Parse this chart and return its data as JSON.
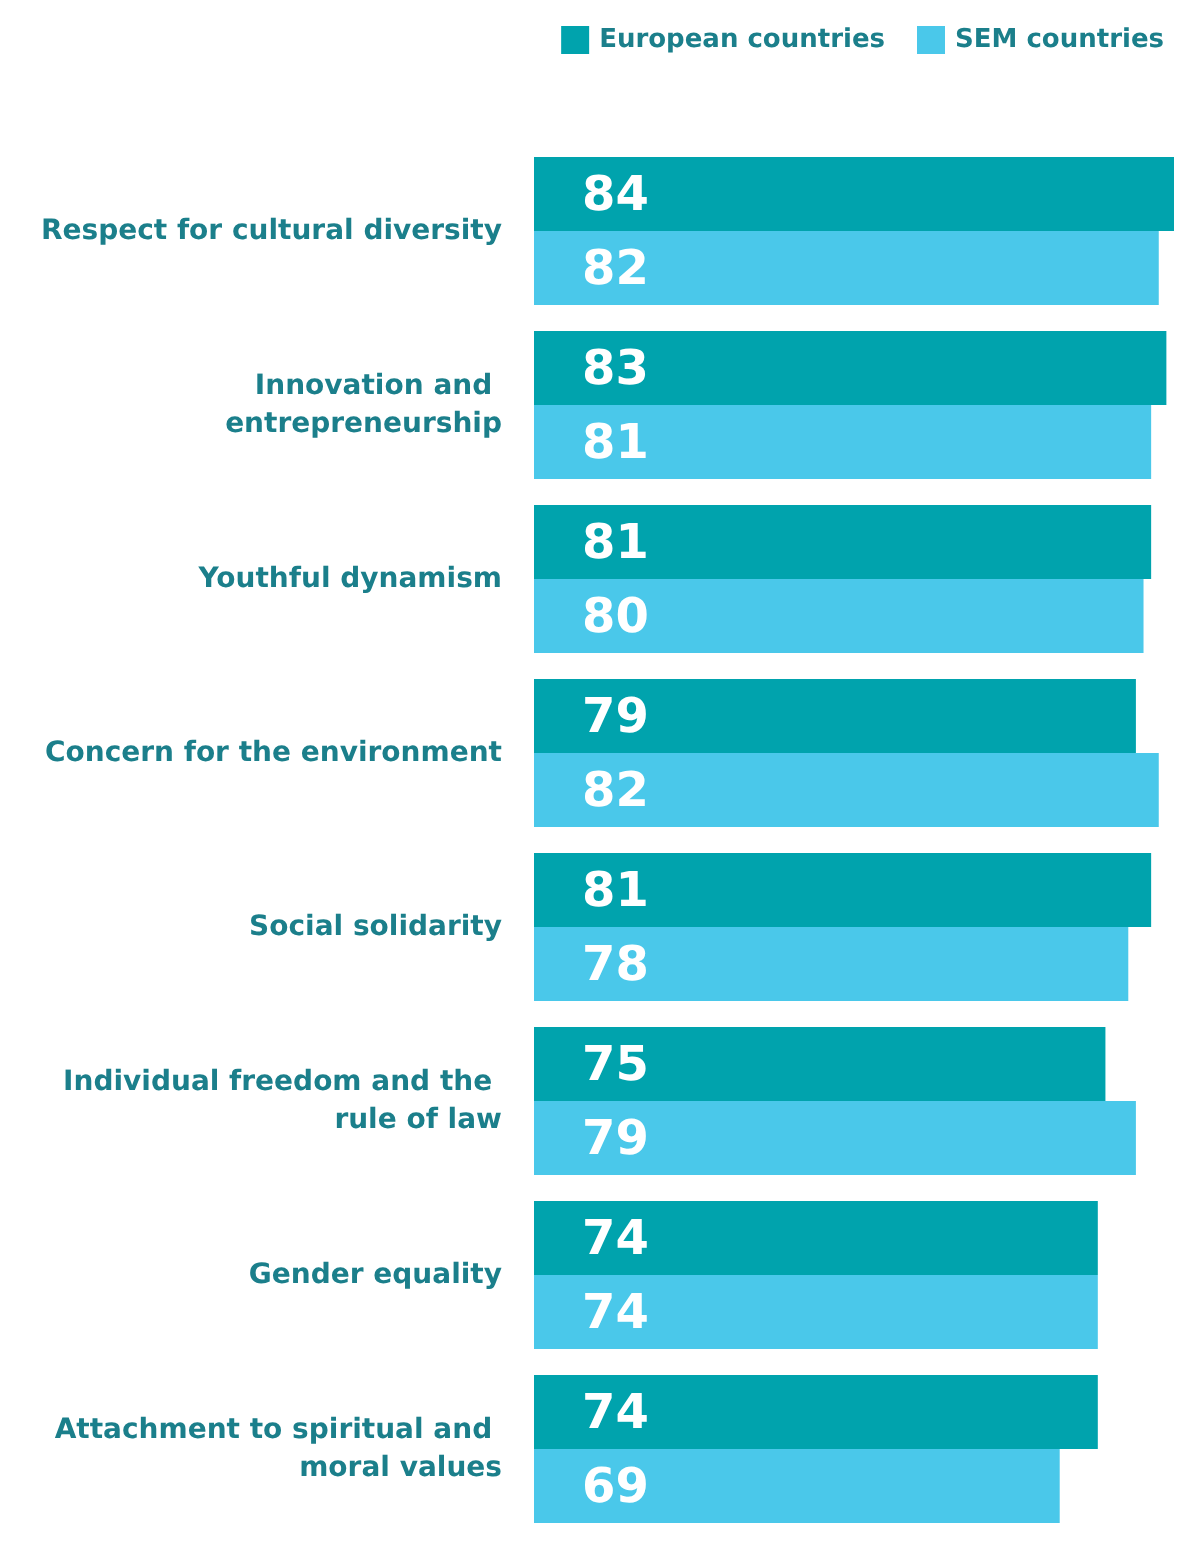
{
  "chart_data": {
    "type": "bar",
    "orientation": "horizontal",
    "categories": [
      "Respect for cultural diversity",
      "Innovation and entrepreneurship",
      "Youthful dynamism",
      "Concern for the environment",
      "Social solidarity",
      "Individual freedom and the rule of law",
      "Gender equality",
      "Attachment to spiritual and moral values"
    ],
    "series": [
      {
        "name": "European countries",
        "color": "#00a3ad",
        "values": [
          84,
          83,
          81,
          79,
          81,
          75,
          74,
          74
        ]
      },
      {
        "name": "SEM countries",
        "color": "#4ac8ea",
        "values": [
          82,
          81,
          80,
          82,
          78,
          79,
          74,
          69
        ]
      }
    ],
    "data_labels": true,
    "legend": "top right"
  }
}
